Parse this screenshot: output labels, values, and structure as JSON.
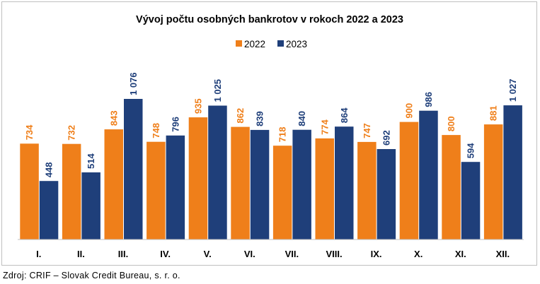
{
  "chart_data": {
    "type": "bar",
    "title": "Vývoj počtu osobných bankrotov v rokoch 2022 a 2023",
    "categories": [
      "I.",
      "II.",
      "III.",
      "IV.",
      "V.",
      "VI.",
      "VII.",
      "VIII.",
      "IX.",
      "X.",
      "XI.",
      "XII."
    ],
    "series": [
      {
        "name": "2022",
        "color": "#ef7f1a",
        "values": [
          734,
          732,
          843,
          748,
          935,
          862,
          718,
          774,
          747,
          900,
          800,
          881
        ],
        "labels": [
          "734",
          "732",
          "843",
          "748",
          "935",
          "862",
          "718",
          "774",
          "747",
          "900",
          "800",
          "881"
        ]
      },
      {
        "name": "2023",
        "color": "#1f3f7a",
        "values": [
          448,
          514,
          1076,
          796,
          1025,
          839,
          840,
          864,
          692,
          986,
          594,
          1027
        ],
        "labels": [
          "448",
          "514",
          "1 076",
          "796",
          "1 025",
          "839",
          "840",
          "864",
          "692",
          "986",
          "594",
          "1 027"
        ]
      }
    ],
    "ylim": [
      0,
      1200
    ],
    "grid": false,
    "legend_position": "top-center"
  },
  "source_note": "Zdroj: CRIF – Slovak Credit Bureau, s. r. o."
}
